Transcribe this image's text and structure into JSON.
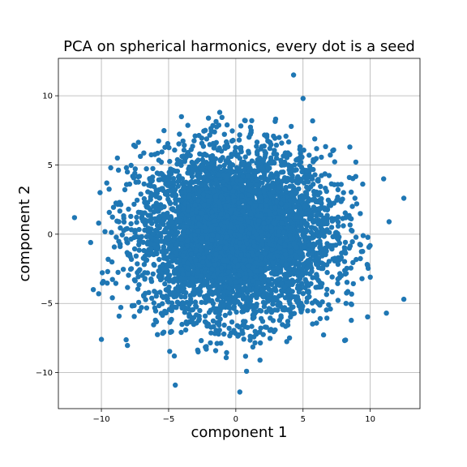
{
  "chart_data": {
    "type": "scatter",
    "title": "PCA on spherical harmonics, every dot is a seed",
    "xlabel": "component 1",
    "ylabel": "component 2",
    "xlim": [
      -13.2,
      13.7
    ],
    "ylim": [
      -12.6,
      12.7
    ],
    "xticks": [
      -10,
      -5,
      0,
      5,
      10
    ],
    "yticks": [
      -10,
      -5,
      0,
      5,
      10
    ],
    "grid": true,
    "point_color": "#1f77b4",
    "point_count_approx": 5000,
    "distribution": {
      "center_x": 0.0,
      "center_y": 0.0,
      "std_x": 3.6,
      "std_y": 3.0
    },
    "outliers": [
      {
        "x": 4.3,
        "y": 11.5
      },
      {
        "x": 5.0,
        "y": 9.8
      },
      {
        "x": -1.2,
        "y": 8.8
      },
      {
        "x": 0.7,
        "y": 8.2
      },
      {
        "x": -12.0,
        "y": 1.2
      },
      {
        "x": -10.8,
        "y": -0.6
      },
      {
        "x": -10.2,
        "y": 0.8
      },
      {
        "x": -10.1,
        "y": 3.0
      },
      {
        "x": -9.6,
        "y": 3.7
      },
      {
        "x": 12.5,
        "y": 2.6
      },
      {
        "x": 11.0,
        "y": 4.0
      },
      {
        "x": 11.4,
        "y": 0.9
      },
      {
        "x": 12.5,
        "y": -4.7
      },
      {
        "x": 11.2,
        "y": -5.7
      },
      {
        "x": 10.0,
        "y": -3.1
      },
      {
        "x": -10.6,
        "y": -4.0
      },
      {
        "x": -10.2,
        "y": -4.3
      },
      {
        "x": -10.0,
        "y": -7.6
      },
      {
        "x": -4.5,
        "y": -10.9
      },
      {
        "x": 0.3,
        "y": -11.4
      },
      {
        "x": 0.8,
        "y": -9.9
      },
      {
        "x": 1.8,
        "y": -9.1
      },
      {
        "x": 8.2,
        "y": -5.0
      },
      {
        "x": 6.9,
        "y": -5.1
      },
      {
        "x": -2.8,
        "y": -8.5
      },
      {
        "x": -2.2,
        "y": -8.3
      }
    ]
  }
}
